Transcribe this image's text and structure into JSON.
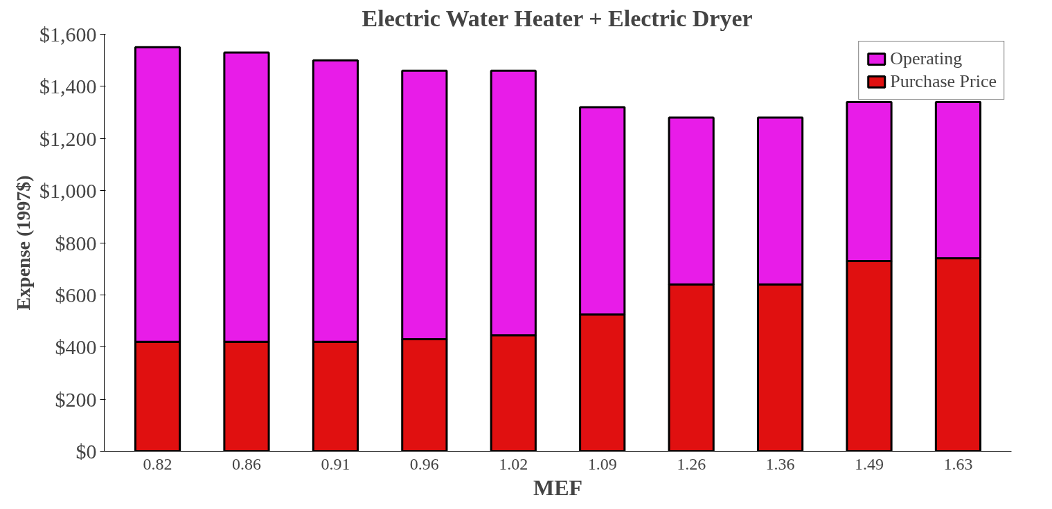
{
  "chart_data": {
    "type": "bar",
    "title": "Electric Water Heater + Electric Dryer",
    "xlabel": "MEF",
    "ylabel": "Expense (1997$)",
    "categories": [
      "0.82",
      "0.86",
      "0.91",
      "0.96",
      "1.02",
      "1.09",
      "1.26",
      "1.36",
      "1.49",
      "1.63"
    ],
    "stacked": true,
    "series": [
      {
        "name": "Purchase Price",
        "color": "#e01010",
        "values": [
          420,
          420,
          420,
          430,
          445,
          525,
          640,
          640,
          730,
          740
        ]
      },
      {
        "name": "Operating",
        "color": "#e81ce8",
        "values": [
          1130,
          1110,
          1080,
          1030,
          1015,
          795,
          640,
          640,
          610,
          600
        ]
      }
    ],
    "ylim": [
      0,
      1600
    ],
    "yticks": [
      {
        "value": 0,
        "label": "$0"
      },
      {
        "value": 200,
        "label": "$200"
      },
      {
        "value": 400,
        "label": "$400"
      },
      {
        "value": 600,
        "label": "$600"
      },
      {
        "value": 800,
        "label": "$800"
      },
      {
        "value": 1000,
        "label": "$1,000"
      },
      {
        "value": 1200,
        "label": "$1,200"
      },
      {
        "value": 1400,
        "label": "$1,400"
      },
      {
        "value": 1600,
        "label": "$1,600"
      }
    ],
    "grid": false,
    "legend": "top right"
  }
}
